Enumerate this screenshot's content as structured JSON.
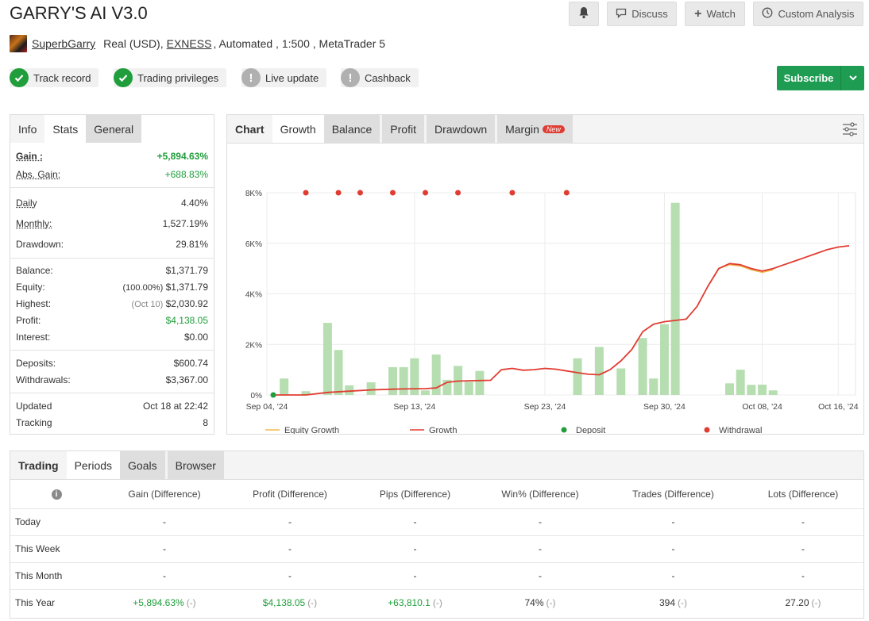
{
  "header": {
    "title": "GARRY'S AI V3.0",
    "buttons": {
      "discuss": "Discuss",
      "watch": "Watch",
      "custom_analysis": "Custom Analysis"
    },
    "owner": "SuperbGarry",
    "account_type": "Real (USD),",
    "broker": "EXNESS",
    "details": ", Automated , 1:500 , MetaTrader 5",
    "badges": [
      "Track record",
      "Trading privileges",
      "Live update",
      "Cashback"
    ],
    "subscribe": "Subscribe"
  },
  "stats": {
    "tabs": [
      "Info",
      "Stats",
      "General"
    ],
    "gain_label": "Gain :",
    "gain": "+5,894.63%",
    "abs_gain_label": "Abs. Gain:",
    "abs_gain": "+688.83%",
    "daily_label": "Daily",
    "daily": "4.40%",
    "monthly_label": "Monthly:",
    "monthly": "1,527.19%",
    "drawdown_label": "Drawdown:",
    "drawdown": "29.81%",
    "balance_label": "Balance:",
    "balance": "$1,371.79",
    "equity_label": "Equity:",
    "equity_pct": "(100.00%)",
    "equity": "$1,371.79",
    "highest_label": "Highest:",
    "highest_date": "(Oct 10)",
    "highest": "$2,030.92",
    "profit_label": "Profit:",
    "profit": "$4,138.05",
    "interest_label": "Interest:",
    "interest": "$0.00",
    "deposits_label": "Deposits:",
    "deposits": "$600.74",
    "withdrawals_label": "Withdrawals:",
    "withdrawals": "$3,367.00",
    "updated_label": "Updated",
    "updated": "Oct 18 at 22:42",
    "tracking_label": "Tracking",
    "tracking": "8"
  },
  "chart_panel": {
    "tabs": [
      "Chart",
      "Growth",
      "Balance",
      "Profit",
      "Drawdown",
      "Margin"
    ],
    "new_badge": "New"
  },
  "chart_data": {
    "type": "line",
    "ylim": [
      0,
      8000
    ],
    "y_ticks": [
      "0%",
      "2K%",
      "4K%",
      "6K%",
      "8K%"
    ],
    "x_ticks": [
      "Sep 04, '24",
      "Sep 13, '24",
      "Sep 23, '24",
      "Sep 30, '24",
      "Oct 08, '24",
      "Oct 16, '24"
    ],
    "series": [
      {
        "name": "Growth",
        "color": "#e03c31",
        "x": [
          0,
          2,
          3,
          5,
          7,
          9,
          11,
          12,
          14,
          15,
          16,
          17,
          18,
          19,
          20,
          21,
          22,
          23,
          24,
          25,
          26,
          27,
          28,
          29,
          30,
          31,
          32,
          33,
          34,
          35,
          36,
          37,
          38,
          39,
          40,
          41,
          42,
          43,
          44,
          45,
          46,
          47,
          48,
          49,
          50,
          51,
          52,
          53
        ],
        "y": [
          0,
          0,
          0,
          100,
          150,
          200,
          230,
          240,
          250,
          280,
          500,
          550,
          560,
          570,
          580,
          1000,
          1050,
          980,
          1000,
          1050,
          1020,
          950,
          880,
          820,
          800,
          1000,
          1350,
          1800,
          2500,
          2800,
          2900,
          2950,
          3000,
          3500,
          4300,
          5000,
          5200,
          5150,
          5000,
          4900,
          5000,
          5150,
          5300,
          5450,
          5600,
          5750,
          5850,
          5900
        ]
      },
      {
        "name": "Equity Growth",
        "color": "#f0b84a",
        "x": [
          40,
          41,
          42,
          43,
          44,
          45,
          46
        ],
        "y": [
          4300,
          5000,
          5150,
          5100,
          4950,
          4850,
          4950
        ]
      }
    ],
    "bars": {
      "color": "#b6deb0",
      "x": [
        1,
        3,
        5,
        6,
        7,
        9,
        11,
        12,
        13,
        14,
        15,
        16,
        17,
        18,
        19,
        20,
        22,
        24,
        25,
        26,
        28,
        30,
        32,
        33,
        34,
        35,
        36,
        37,
        42,
        43,
        44,
        45,
        46,
        47
      ],
      "y": [
        650,
        150,
        2850,
        1780,
        380,
        500,
        1100,
        1100,
        1450,
        180,
        1600,
        600,
        1150,
        520,
        950,
        0,
        0,
        0,
        0,
        0,
        1450,
        1900,
        1050,
        0,
        2250,
        650,
        2800,
        7600,
        460,
        1000,
        400,
        410,
        180,
        0
      ]
    },
    "deposit_x": [
      0
    ],
    "withdrawal_x": [
      3,
      6,
      8,
      11,
      14,
      17,
      22,
      27
    ],
    "legend": [
      "Equity Growth",
      "Growth",
      "Deposit",
      "Withdrawal"
    ]
  },
  "periods": {
    "tabs": [
      "Trading",
      "Periods",
      "Goals",
      "Browser"
    ],
    "columns": [
      "Gain (Difference)",
      "Profit (Difference)",
      "Pips (Difference)",
      "Win% (Difference)",
      "Trades (Difference)",
      "Lots (Difference)"
    ],
    "rows": [
      {
        "label": "Today",
        "values": [
          "-",
          "-",
          "-",
          "-",
          "-",
          "-"
        ],
        "diffs": [
          "",
          "",
          "",
          "",
          "",
          ""
        ]
      },
      {
        "label": "This Week",
        "values": [
          "-",
          "-",
          "-",
          "-",
          "-",
          "-"
        ],
        "diffs": [
          "",
          "",
          "",
          "",
          "",
          ""
        ]
      },
      {
        "label": "This Month",
        "values": [
          "-",
          "-",
          "-",
          "-",
          "-",
          "-"
        ],
        "diffs": [
          "",
          "",
          "",
          "",
          "",
          ""
        ]
      },
      {
        "label": "This Year",
        "values": [
          "+5,894.63%",
          "$4,138.05",
          "+63,810.1",
          "74%",
          "394",
          "27.20"
        ],
        "diffs": [
          "(-)",
          "(-)",
          "(-)",
          "(-)",
          "(-)",
          "(-)"
        ]
      }
    ]
  },
  "colors": {
    "green": "#1f9e3b",
    "red": "#e03c31",
    "bar": "#b6deb0"
  }
}
